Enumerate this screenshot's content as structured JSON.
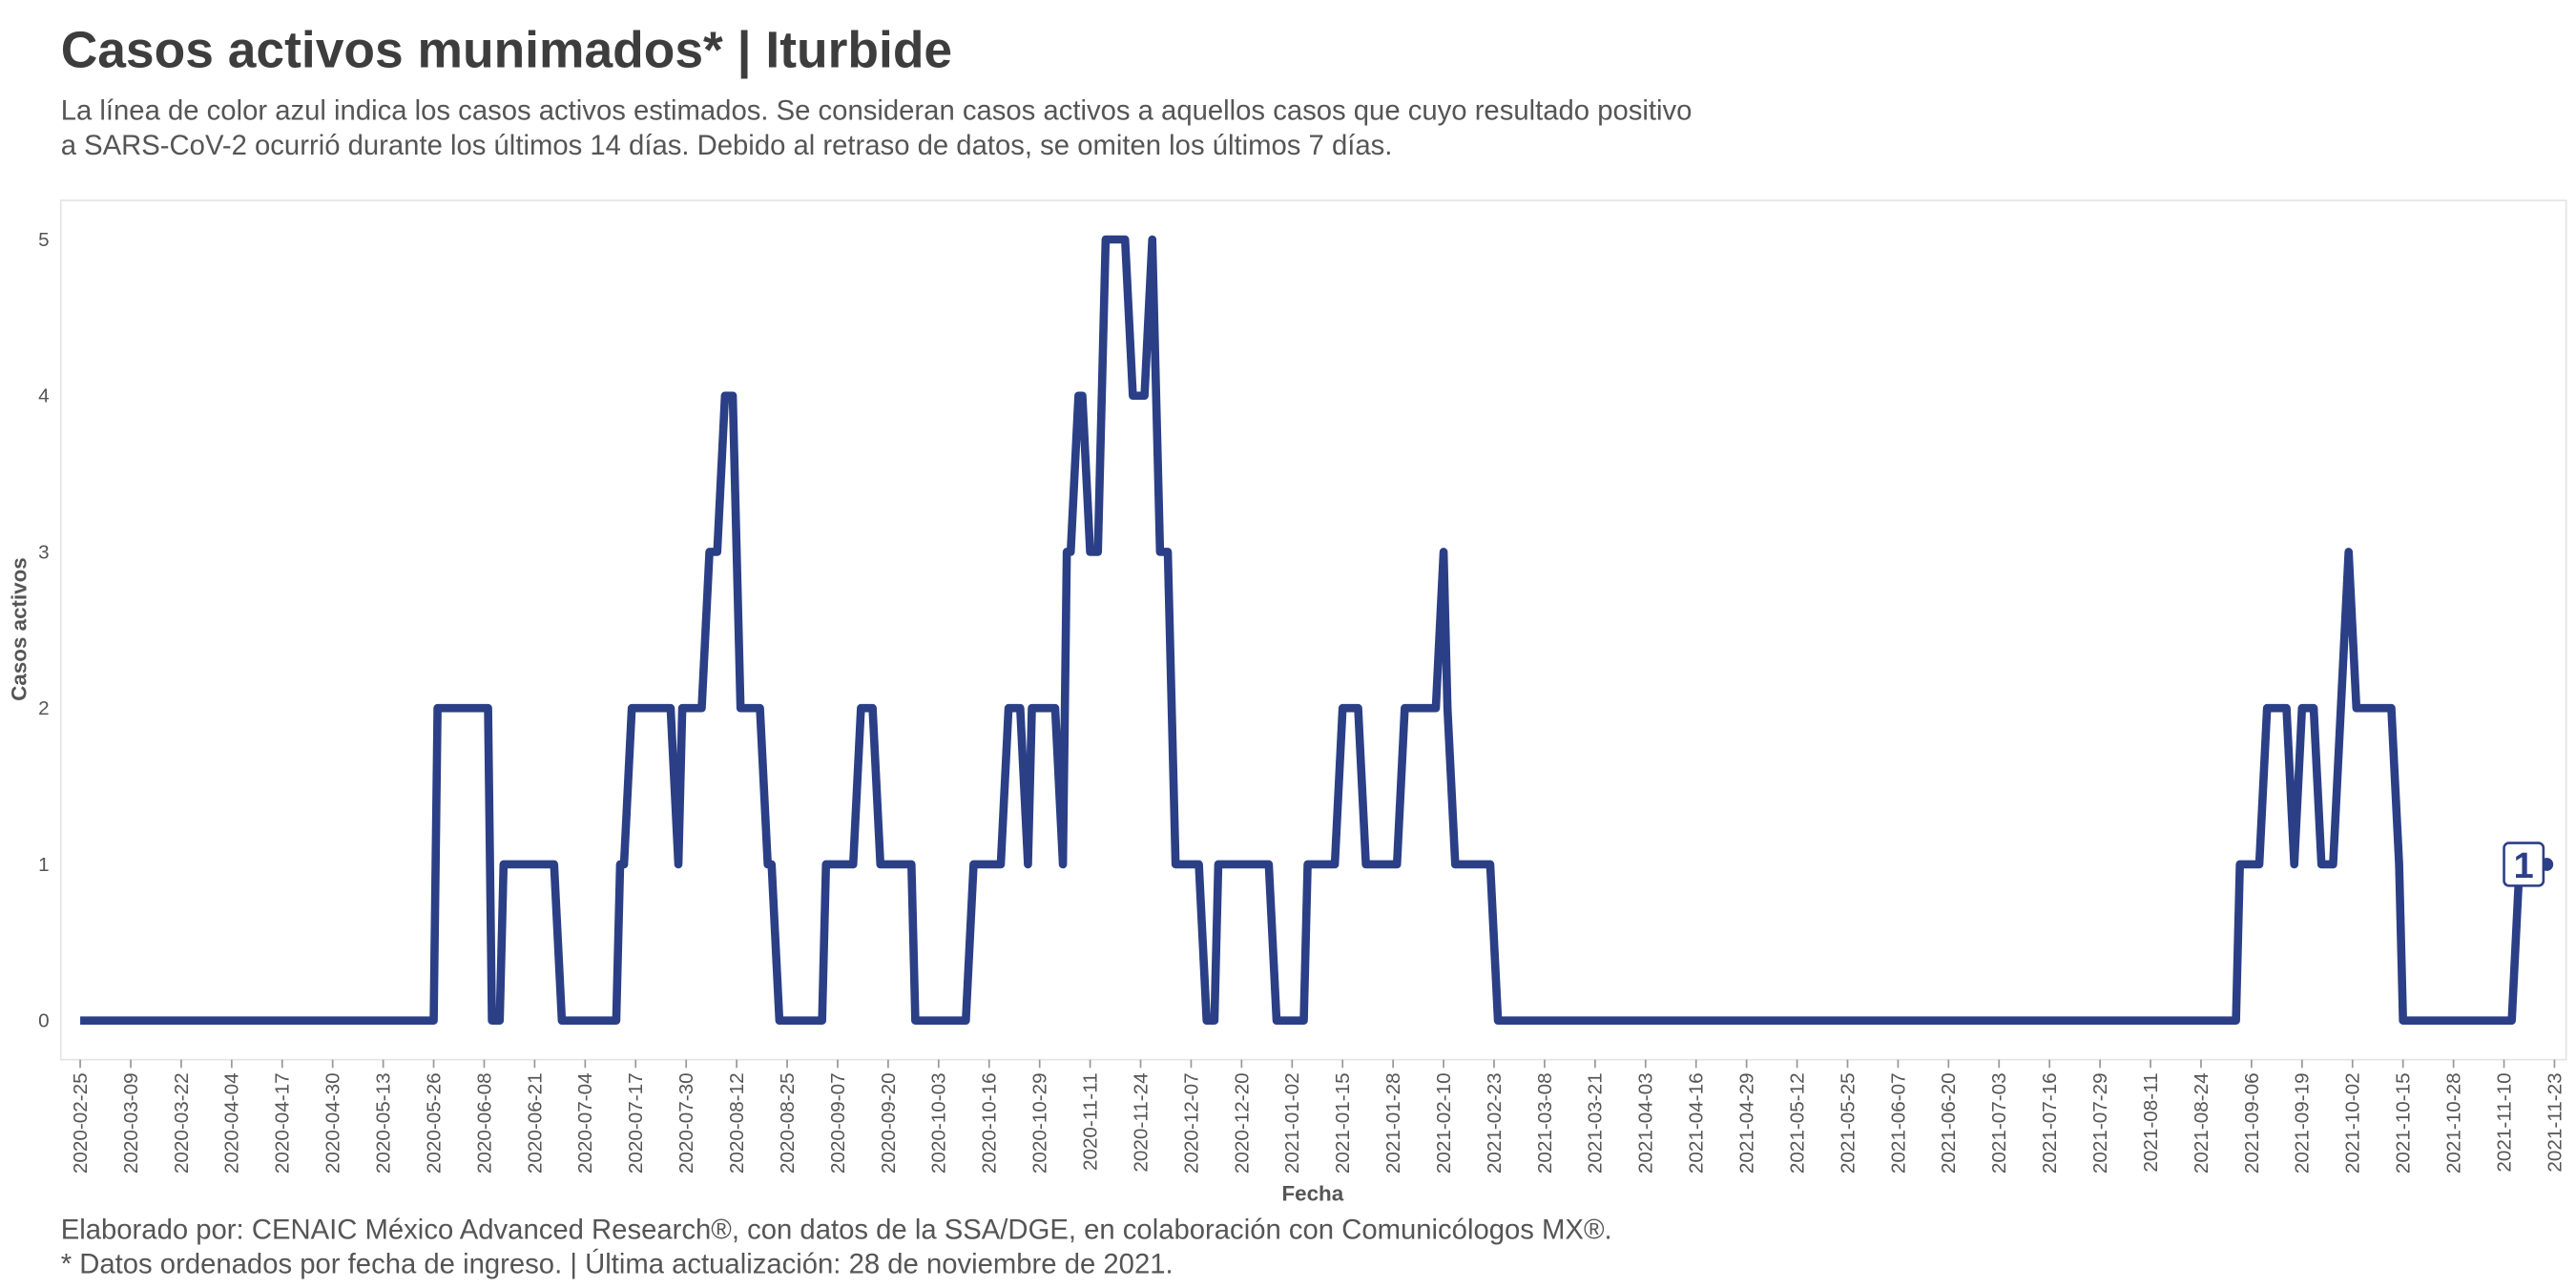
{
  "chart_data": {
    "type": "line",
    "title": "Casos activos munimados* | Iturbide",
    "subtitle": [
      "La línea de color azul indica los casos activos estimados. Se consideran casos activos a aquellos casos que cuyo resultado positivo",
      "a SARS-CoV-2 ocurrió durante los últimos 14 días. Debido al retraso de datos, se omiten los últimos 7 días."
    ],
    "caption": [
      "Elaborado por: CENAIC México Advanced Research®, con datos de la SSA/DGE, en colaboración con Comunicólogos MX®.",
      "* Datos ordenados por fecha de ingreso. | Última actualización: 28 de noviembre de 2021."
    ],
    "x_label": "Fecha",
    "y_label": "Casos activos",
    "x": [
      "2020-02-25",
      "2020-05-26",
      "2020-05-27",
      "2020-06-09",
      "2020-06-10",
      "2020-06-12",
      "2020-06-13",
      "2020-06-26",
      "2020-06-28",
      "2020-07-12",
      "2020-07-13",
      "2020-07-14",
      "2020-07-16",
      "2020-07-26",
      "2020-07-28",
      "2020-07-29",
      "2020-08-03",
      "2020-08-05",
      "2020-08-07",
      "2020-08-09",
      "2020-08-11",
      "2020-08-13",
      "2020-08-18",
      "2020-08-20",
      "2020-08-21",
      "2020-08-23",
      "2020-09-03",
      "2020-09-04",
      "2020-09-11",
      "2020-09-13",
      "2020-09-16",
      "2020-09-18",
      "2020-09-26",
      "2020-09-27",
      "2020-10-10",
      "2020-10-12",
      "2020-10-19",
      "2020-10-21",
      "2020-10-24",
      "2020-10-26",
      "2020-10-27",
      "2020-11-02",
      "2020-11-04",
      "2020-11-05",
      "2020-11-06",
      "2020-11-08",
      "2020-11-09",
      "2020-11-11",
      "2020-11-13",
      "2020-11-15",
      "2020-11-20",
      "2020-11-22",
      "2020-11-25",
      "2020-11-27",
      "2020-11-29",
      "2020-12-01",
      "2020-12-03",
      "2020-12-09",
      "2020-12-11",
      "2020-12-13",
      "2020-12-14",
      "2020-12-27",
      "2020-12-29",
      "2021-01-05",
      "2021-01-06",
      "2021-01-13",
      "2021-01-15",
      "2021-01-19",
      "2021-01-21",
      "2021-01-29",
      "2021-01-31",
      "2021-02-08",
      "2021-02-10",
      "2021-02-11",
      "2021-02-13",
      "2021-02-22",
      "2021-02-24",
      "2021-09-02",
      "2021-09-03",
      "2021-09-08",
      "2021-09-10",
      "2021-09-15",
      "2021-09-17",
      "2021-09-19",
      "2021-09-22",
      "2021-09-24",
      "2021-09-27",
      "2021-09-29",
      "2021-10-01",
      "2021-10-03",
      "2021-10-12",
      "2021-10-14",
      "2021-10-15",
      "2021-11-12",
      "2021-11-14",
      "2021-11-21"
    ],
    "series": [
      {
        "name": "Casos activos",
        "color": "#2b3f86",
        "values": [
          0,
          0,
          2,
          2,
          0,
          0,
          1,
          1,
          0,
          0,
          1,
          1,
          2,
          2,
          1,
          2,
          2,
          3,
          3,
          4,
          4,
          2,
          2,
          1,
          1,
          0,
          0,
          1,
          1,
          2,
          2,
          1,
          1,
          0,
          0,
          1,
          1,
          2,
          2,
          1,
          2,
          2,
          1,
          3,
          3,
          4,
          4,
          3,
          3,
          5,
          5,
          4,
          4,
          5,
          3,
          3,
          1,
          1,
          0,
          0,
          1,
          1,
          0,
          0,
          1,
          1,
          2,
          2,
          1,
          1,
          2,
          2,
          3,
          2,
          1,
          1,
          0,
          0,
          1,
          1,
          2,
          2,
          1,
          2,
          2,
          1,
          1,
          2,
          3,
          2,
          2,
          1,
          0,
          0,
          1,
          1
        ]
      }
    ],
    "xlim": [
      "2020-02-20",
      "2021-11-26"
    ],
    "xticks": [
      "2020-02-25",
      "2020-03-09",
      "2020-03-22",
      "2020-04-04",
      "2020-04-17",
      "2020-04-30",
      "2020-05-13",
      "2020-05-26",
      "2020-06-08",
      "2020-06-21",
      "2020-07-04",
      "2020-07-17",
      "2020-07-30",
      "2020-08-12",
      "2020-08-25",
      "2020-09-07",
      "2020-09-20",
      "2020-10-03",
      "2020-10-16",
      "2020-10-29",
      "2020-11-11",
      "2020-11-24",
      "2020-12-07",
      "2020-12-20",
      "2021-01-02",
      "2021-01-15",
      "2021-01-28",
      "2021-02-10",
      "2021-02-23",
      "2021-03-08",
      "2021-03-21",
      "2021-04-03",
      "2021-04-16",
      "2021-04-29",
      "2021-05-12",
      "2021-05-25",
      "2021-06-07",
      "2021-06-20",
      "2021-07-03",
      "2021-07-16",
      "2021-07-29",
      "2021-08-11",
      "2021-08-24",
      "2021-09-06",
      "2021-09-19",
      "2021-10-02",
      "2021-10-15",
      "2021-10-28",
      "2021-11-10",
      "2021-11-23"
    ],
    "ylim": [
      -0.25,
      5.25
    ],
    "yticks": [
      0,
      1,
      2,
      3,
      4,
      5
    ],
    "grid": false
  }
}
